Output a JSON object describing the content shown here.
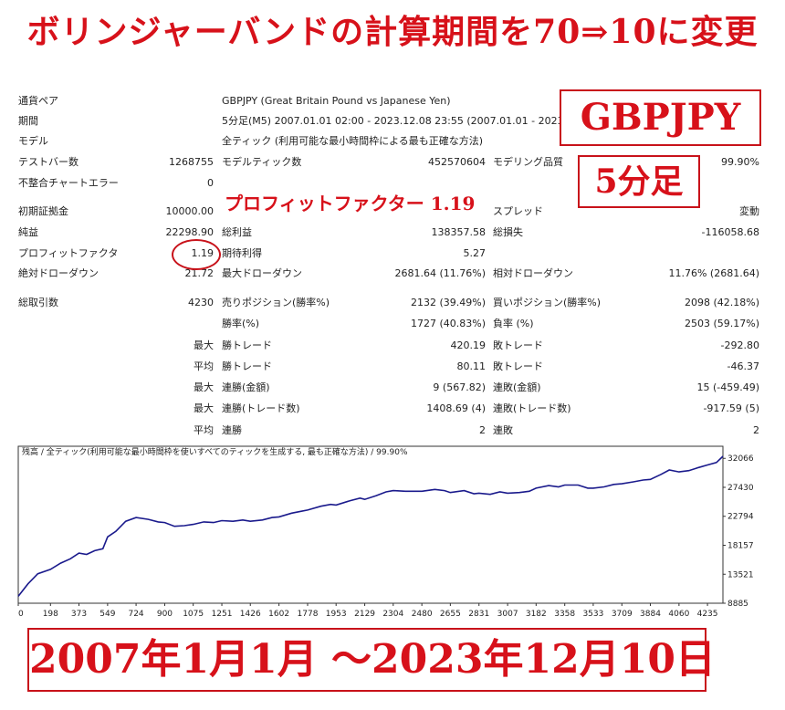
{
  "headline": "ボリンジャーバンドの計算期間を70⇒10に変更",
  "overlays": {
    "symbol_badge": "GBPJPY",
    "timeframe_badge": "5分足",
    "profit_factor_callout": "プロフィットファクター 1.19",
    "date_range_banner": "2007年1月1月 ～2023年12月10日"
  },
  "report": {
    "rows": [
      {
        "label": "通貨ペア",
        "value": "GBPJPY (Great Britain Pound vs Japanese Yen)"
      },
      {
        "label": "期間",
        "value": "5分足(M5) 2007.01.01 02:00 - 2023.12.08 23:55 (2007.01.01 - 2023.12.10)"
      },
      {
        "label": "モデル",
        "value": "全ティック (利用可能な最小時間枠による最も正確な方法)"
      }
    ],
    "test_bars_label": "テストバー数",
    "test_bars_value": "1268755",
    "model_ticks_label": "モデルティック数",
    "model_ticks_value": "452570604",
    "model_quality_label": "モデリング品質",
    "model_quality_value": "99.90%",
    "mismatch_label": "不整合チャートエラー",
    "mismatch_value": "0",
    "initial_deposit_label": "初期証拠金",
    "initial_deposit_value": "10000.00",
    "spread_label": "スプレッド",
    "spread_value": "変動",
    "net_profit_label": "純益",
    "net_profit_value": "22298.90",
    "gross_profit_label": "総利益",
    "gross_profit_value": "138357.58",
    "gross_loss_label": "総損失",
    "gross_loss_value": "-116058.68",
    "profit_factor_label": "プロフィットファクタ",
    "profit_factor_value": "1.19",
    "expected_payoff_label": "期待利得",
    "expected_payoff_value": "5.27",
    "abs_dd_label": "絶対ドローダウン",
    "abs_dd_value": "21.72",
    "max_dd_label": "最大ドローダウン",
    "max_dd_value": "2681.64 (11.76%)",
    "rel_dd_label": "相対ドローダウン",
    "rel_dd_value": "11.76% (2681.64)",
    "total_trades_label": "総取引数",
    "total_trades_value": "4230",
    "short_label": "売りポジション(勝率%)",
    "short_value": "2132 (39.49%)",
    "long_label": "買いポジション(勝率%)",
    "long_value": "2098 (42.18%)",
    "win_rate_label": "勝率(%)",
    "win_rate_value": "1727 (40.83%)",
    "loss_rate_label": "負率 (%)",
    "loss_rate_value": "2503 (59.17%)",
    "max_word": "最大",
    "avg_word": "平均",
    "largest_win_label": "勝トレード",
    "largest_win_value": "420.19",
    "largest_loss_label": "敗トレード",
    "largest_loss_value": "-292.80",
    "avg_win_label": "勝トレード",
    "avg_win_value": "80.11",
    "avg_loss_label": "敗トレード",
    "avg_loss_value": "-46.37",
    "max_consec_win_amt_label": "連勝(金額)",
    "max_consec_win_amt_value": "9 (567.82)",
    "max_consec_loss_amt_label": "連敗(金額)",
    "max_consec_loss_amt_value": "15 (-459.49)",
    "max_consec_win_cnt_label": "連勝(トレード数)",
    "max_consec_win_cnt_value": "1408.69 (4)",
    "max_consec_loss_cnt_label": "連敗(トレード数)",
    "max_consec_loss_cnt_value": "-917.59 (5)",
    "avg_consec_win_label": "連勝",
    "avg_consec_win_value": "2",
    "avg_consec_loss_label": "連敗",
    "avg_consec_loss_value": "2"
  },
  "chart_data": {
    "type": "line",
    "title": "残高 / 全ティック(利用可能な最小時間枠を使いすべてのティックを生成する, 最も正確な方法) / 99.90%",
    "x_ticks": [
      0,
      198,
      373,
      549,
      724,
      900,
      1075,
      1251,
      1426,
      1602,
      1778,
      1953,
      2129,
      2304,
      2480,
      2655,
      2831,
      3007,
      3182,
      3358,
      3533,
      3709,
      3884,
      4060,
      4235
    ],
    "y_ticks": [
      8885,
      13521,
      18157,
      22794,
      27430,
      32066
    ],
    "xlim": [
      0,
      4330
    ],
    "ylim": [
      8885,
      34000
    ],
    "series": [
      {
        "color": "#1a1a8c",
        "x": [
          0,
          60,
          120,
          198,
          260,
          320,
          373,
          420,
          470,
          520,
          549,
          600,
          660,
          724,
          800,
          860,
          900,
          960,
          1020,
          1075,
          1140,
          1200,
          1251,
          1320,
          1380,
          1426,
          1500,
          1560,
          1602,
          1680,
          1740,
          1778,
          1860,
          1920,
          1953,
          2040,
          2100,
          2129,
          2200,
          2260,
          2304,
          2380,
          2440,
          2480,
          2560,
          2620,
          2655,
          2740,
          2800,
          2831,
          2900,
          2960,
          3007,
          3080,
          3140,
          3182,
          3260,
          3320,
          3358,
          3440,
          3500,
          3533,
          3600,
          3660,
          3709,
          3780,
          3840,
          3884,
          3950,
          4000,
          4060,
          4120,
          4180,
          4235,
          4290,
          4330
        ],
        "y": [
          10000,
          12000,
          13600,
          14300,
          15300,
          16000,
          16900,
          16700,
          17300,
          17600,
          19500,
          20400,
          22000,
          22600,
          22300,
          21900,
          21800,
          21200,
          21300,
          21500,
          21900,
          21800,
          22100,
          22000,
          22200,
          22000,
          22200,
          22600,
          22700,
          23300,
          23600,
          23800,
          24400,
          24700,
          24600,
          25300,
          25700,
          25500,
          26100,
          26700,
          26900,
          26800,
          26800,
          26800,
          27100,
          26900,
          26600,
          26900,
          26400,
          26500,
          26300,
          26700,
          26500,
          26600,
          26800,
          27300,
          27700,
          27500,
          27800,
          27800,
          27300,
          27300,
          27500,
          27900,
          28000,
          28300,
          28600,
          28700,
          29500,
          30200,
          29900,
          30100,
          30600,
          31000,
          31400,
          32400
        ]
      }
    ]
  }
}
